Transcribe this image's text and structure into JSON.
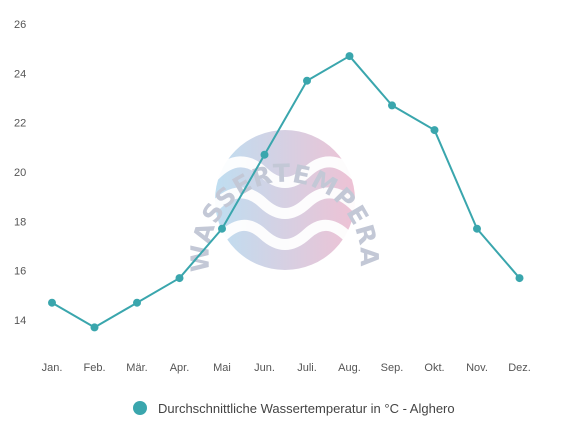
{
  "chart_data": {
    "type": "line",
    "categories": [
      "Jan.",
      "Feb.",
      "Mär.",
      "Apr.",
      "Mai",
      "Jun.",
      "Juli.",
      "Aug.",
      "Sep.",
      "Okt.",
      "Nov.",
      "Dez."
    ],
    "series": [
      {
        "name": "Durchschnittliche Wassertemperatur in °C - Alghero",
        "values": [
          14.7,
          13.7,
          14.7,
          15.7,
          17.7,
          20.7,
          23.7,
          24.7,
          22.7,
          21.7,
          17.7,
          15.7
        ],
        "color": "#3aa6ad"
      }
    ],
    "yticks": [
      "14",
      "16",
      "18",
      "20",
      "22",
      "24",
      "26"
    ],
    "ylim": [
      13,
      26
    ],
    "grid": false,
    "legend_position": "bottom-center"
  },
  "watermark": {
    "text": "WASSERTEMPERATUR.ORG",
    "colors": {
      "left": "#a9d3ec",
      "right": "#e8adc6",
      "text": "#c3c8d6"
    }
  }
}
